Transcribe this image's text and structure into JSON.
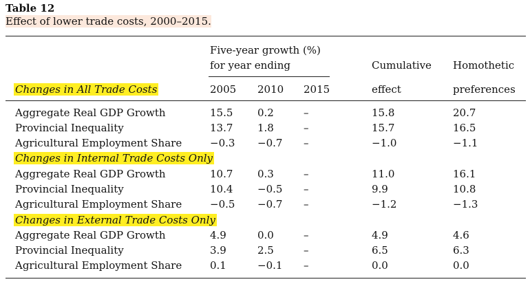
{
  "table": {
    "title": "Table 12",
    "caption": "Effect of lower trade costs, 2000–2015.",
    "header": {
      "group_line1": "Five-year growth (%)",
      "group_line2": "for year ending",
      "years": [
        "2005",
        "2010",
        "2015"
      ],
      "cumulative_line1": "Cumulative",
      "cumulative_line2": "effect",
      "homothetic_line1": "Homothetic",
      "homothetic_line2": "preferences"
    },
    "sections": [
      {
        "title": "Changes in All Trade Costs",
        "rows": [
          {
            "label": "Aggregate Real GDP Growth",
            "y2005": "15.5",
            "y2010": "0.2",
            "y2015": "–",
            "cum": "15.8",
            "homo": "20.7"
          },
          {
            "label": "Provincial Inequality",
            "y2005": "13.7",
            "y2010": "1.8",
            "y2015": "–",
            "cum": "15.7",
            "homo": "16.5"
          },
          {
            "label": "Agricultural Employment Share",
            "y2005": "−0.3",
            "y2010": "−0.7",
            "y2015": "–",
            "cum": "−1.0",
            "homo": "−1.1"
          }
        ]
      },
      {
        "title": "Changes in Internal Trade Costs Only",
        "rows": [
          {
            "label": "Aggregate Real GDP Growth",
            "y2005": "10.7",
            "y2010": "0.3",
            "y2015": "–",
            "cum": "11.0",
            "homo": "16.1"
          },
          {
            "label": "Provincial Inequality",
            "y2005": "10.4",
            "y2010": "−0.5",
            "y2015": "–",
            "cum": "9.9",
            "homo": "10.8"
          },
          {
            "label": "Agricultural Employment Share",
            "y2005": "−0.5",
            "y2010": "−0.7",
            "y2015": "–",
            "cum": "−1.2",
            "homo": "−1.3"
          }
        ]
      },
      {
        "title": "Changes in External Trade Costs Only",
        "rows": [
          {
            "label": "Aggregate Real GDP Growth",
            "y2005": "4.9",
            "y2010": "0.0",
            "y2015": "–",
            "cum": "4.9",
            "homo": "4.6"
          },
          {
            "label": "Provincial Inequality",
            "y2005": "3.9",
            "y2010": "2.5",
            "y2015": "–",
            "cum": "6.5",
            "homo": "6.3"
          },
          {
            "label": "Agricultural Employment Share",
            "y2005": "0.1",
            "y2010": "−0.1",
            "y2015": "–",
            "cum": "0.0",
            "homo": "0.0"
          }
        ]
      }
    ]
  }
}
